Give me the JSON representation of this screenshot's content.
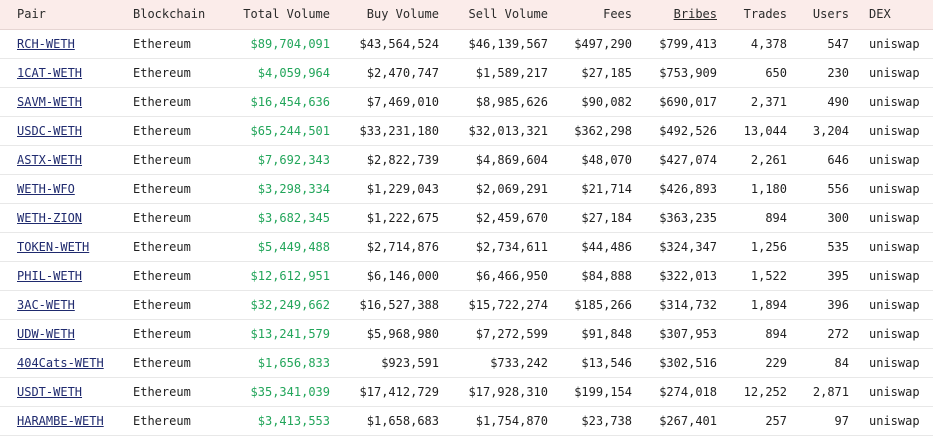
{
  "columns": {
    "pair": "Pair",
    "blockchain": "Blockchain",
    "total_volume": "Total Volume",
    "buy_volume": "Buy Volume",
    "sell_volume": "Sell Volume",
    "fees": "Fees",
    "bribes": "Bribes",
    "trades": "Trades",
    "users": "Users",
    "dex": "DEX"
  },
  "rows": [
    {
      "pair": "RCH-WETH",
      "blockchain": "Ethereum",
      "total_volume": "$89,704,091",
      "buy_volume": "$43,564,524",
      "sell_volume": "$46,139,567",
      "fees": "$497,290",
      "bribes": "$799,413",
      "trades": "4,378",
      "users": "547",
      "dex": "uniswap"
    },
    {
      "pair": "1CAT-WETH",
      "blockchain": "Ethereum",
      "total_volume": "$4,059,964",
      "buy_volume": "$2,470,747",
      "sell_volume": "$1,589,217",
      "fees": "$27,185",
      "bribes": "$753,909",
      "trades": "650",
      "users": "230",
      "dex": "uniswap"
    },
    {
      "pair": "SAVM-WETH",
      "blockchain": "Ethereum",
      "total_volume": "$16,454,636",
      "buy_volume": "$7,469,010",
      "sell_volume": "$8,985,626",
      "fees": "$90,082",
      "bribes": "$690,017",
      "trades": "2,371",
      "users": "490",
      "dex": "uniswap"
    },
    {
      "pair": "USDC-WETH",
      "blockchain": "Ethereum",
      "total_volume": "$65,244,501",
      "buy_volume": "$33,231,180",
      "sell_volume": "$32,013,321",
      "fees": "$362,298",
      "bribes": "$492,526",
      "trades": "13,044",
      "users": "3,204",
      "dex": "uniswap"
    },
    {
      "pair": "ASTX-WETH",
      "blockchain": "Ethereum",
      "total_volume": "$7,692,343",
      "buy_volume": "$2,822,739",
      "sell_volume": "$4,869,604",
      "fees": "$48,070",
      "bribes": "$427,074",
      "trades": "2,261",
      "users": "646",
      "dex": "uniswap"
    },
    {
      "pair": "WETH-WFO",
      "blockchain": "Ethereum",
      "total_volume": "$3,298,334",
      "buy_volume": "$1,229,043",
      "sell_volume": "$2,069,291",
      "fees": "$21,714",
      "bribes": "$426,893",
      "trades": "1,180",
      "users": "556",
      "dex": "uniswap"
    },
    {
      "pair": "WETH-ZION",
      "blockchain": "Ethereum",
      "total_volume": "$3,682,345",
      "buy_volume": "$1,222,675",
      "sell_volume": "$2,459,670",
      "fees": "$27,184",
      "bribes": "$363,235",
      "trades": "894",
      "users": "300",
      "dex": "uniswap"
    },
    {
      "pair": "TOKEN-WETH",
      "blockchain": "Ethereum",
      "total_volume": "$5,449,488",
      "buy_volume": "$2,714,876",
      "sell_volume": "$2,734,611",
      "fees": "$44,486",
      "bribes": "$324,347",
      "trades": "1,256",
      "users": "535",
      "dex": "uniswap"
    },
    {
      "pair": "PHIL-WETH",
      "blockchain": "Ethereum",
      "total_volume": "$12,612,951",
      "buy_volume": "$6,146,000",
      "sell_volume": "$6,466,950",
      "fees": "$84,888",
      "bribes": "$322,013",
      "trades": "1,522",
      "users": "395",
      "dex": "uniswap"
    },
    {
      "pair": "3AC-WETH",
      "blockchain": "Ethereum",
      "total_volume": "$32,249,662",
      "buy_volume": "$16,527,388",
      "sell_volume": "$15,722,274",
      "fees": "$185,266",
      "bribes": "$314,732",
      "trades": "1,894",
      "users": "396",
      "dex": "uniswap"
    },
    {
      "pair": "UDW-WETH",
      "blockchain": "Ethereum",
      "total_volume": "$13,241,579",
      "buy_volume": "$5,968,980",
      "sell_volume": "$7,272,599",
      "fees": "$91,848",
      "bribes": "$307,953",
      "trades": "894",
      "users": "272",
      "dex": "uniswap"
    },
    {
      "pair": "404Cats-WETH",
      "blockchain": "Ethereum",
      "total_volume": "$1,656,833",
      "buy_volume": "$923,591",
      "sell_volume": "$733,242",
      "fees": "$13,546",
      "bribes": "$302,516",
      "trades": "229",
      "users": "84",
      "dex": "uniswap"
    },
    {
      "pair": "USDT-WETH",
      "blockchain": "Ethereum",
      "total_volume": "$35,341,039",
      "buy_volume": "$17,412,729",
      "sell_volume": "$17,928,310",
      "fees": "$199,154",
      "bribes": "$274,018",
      "trades": "12,252",
      "users": "2,871",
      "dex": "uniswap"
    },
    {
      "pair": "HARAMBE-WETH",
      "blockchain": "Ethereum",
      "total_volume": "$3,413,553",
      "buy_volume": "$1,658,683",
      "sell_volume": "$1,754,870",
      "fees": "$23,738",
      "bribes": "$267,401",
      "trades": "257",
      "users": "97",
      "dex": "uniswap"
    }
  ]
}
